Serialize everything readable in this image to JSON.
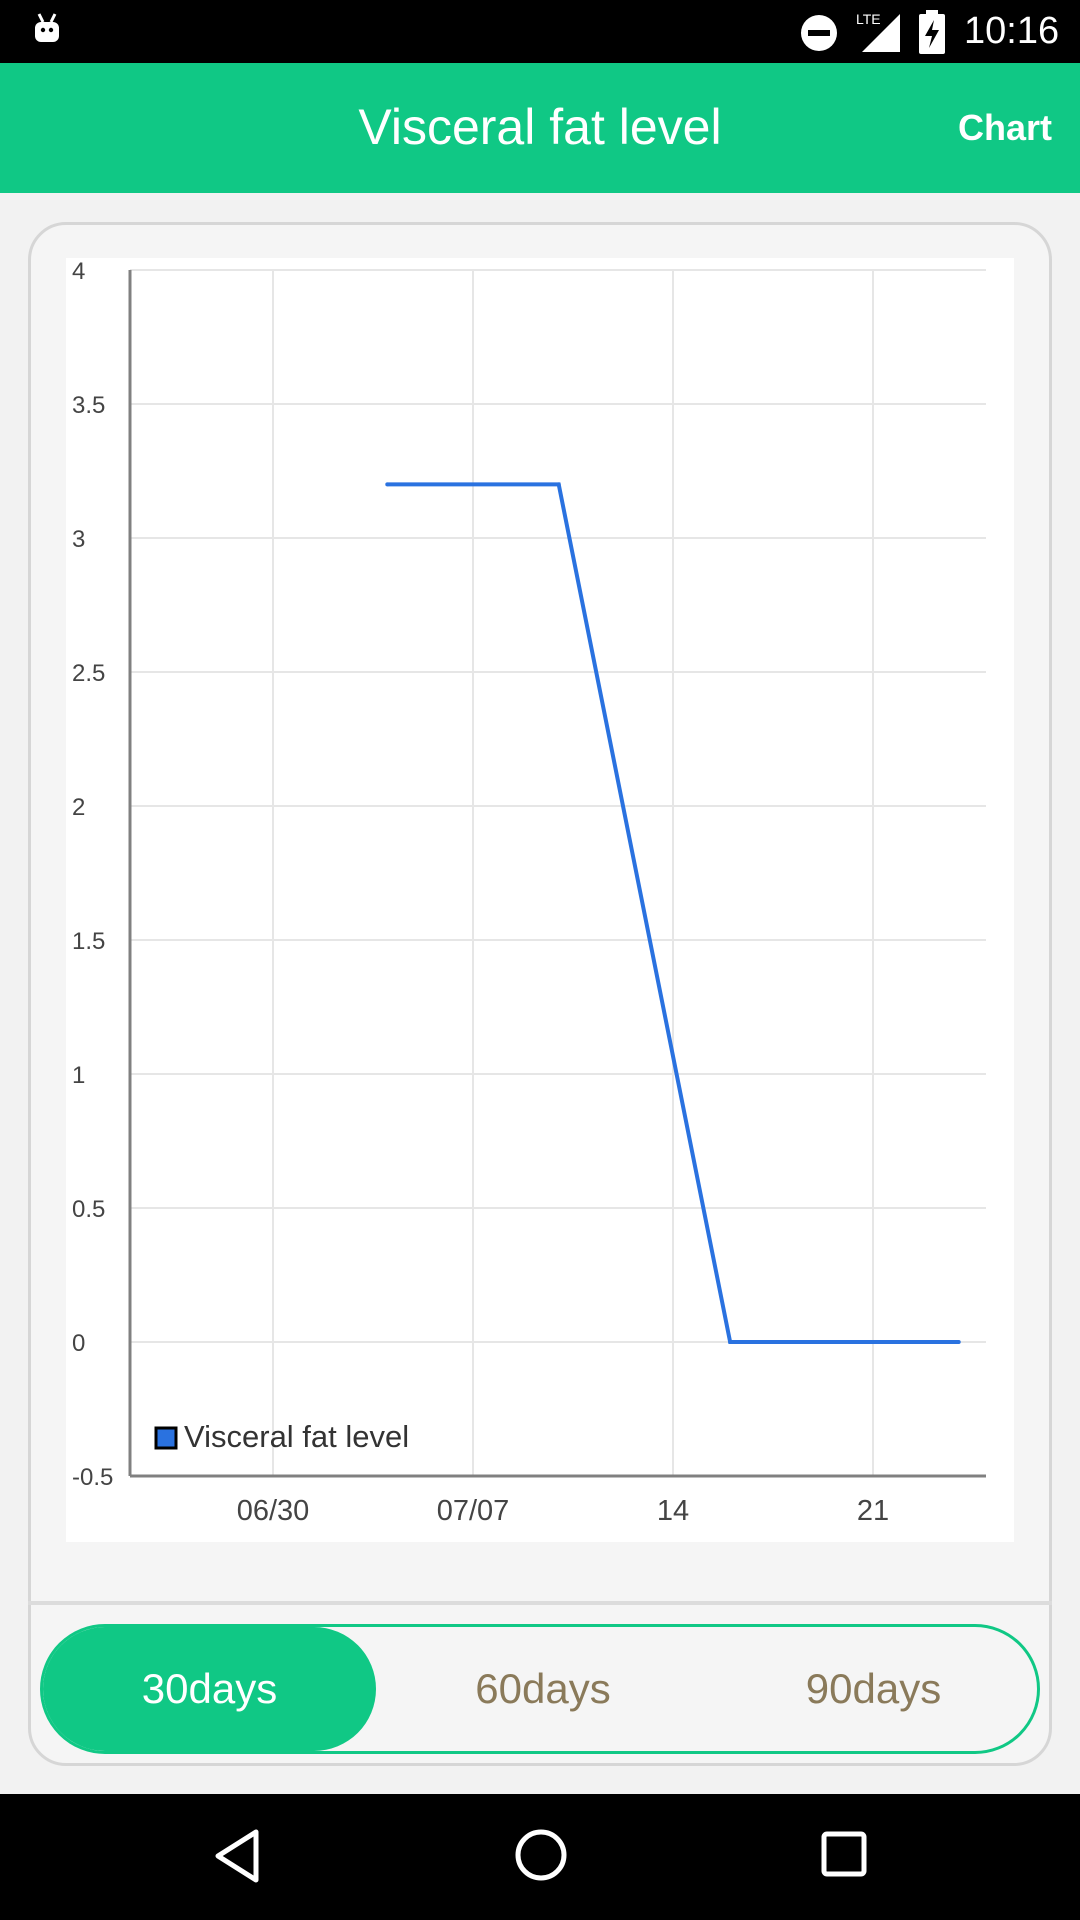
{
  "status_bar": {
    "time": "10:16",
    "network": "LTE"
  },
  "app_bar": {
    "title": "Visceral fat level",
    "action": "Chart"
  },
  "chart_data": {
    "type": "line",
    "x_ticks": [
      "06/30",
      "07/07",
      "14",
      "21"
    ],
    "y_ticks": [
      "4",
      "3.5",
      "3",
      "2.5",
      "2",
      "1.5",
      "1",
      "0.5",
      "0",
      "-0.5"
    ],
    "ylim": [
      -0.5,
      4
    ],
    "grid": true,
    "legend_position": "bottom-left",
    "series": [
      {
        "name": "Visceral fat level",
        "color": "#2a72e0",
        "points": [
          {
            "x": "07/04",
            "y": 3.2
          },
          {
            "x": "07/10",
            "y": 3.2
          },
          {
            "x": "07/16",
            "y": 0
          },
          {
            "x": "07/24",
            "y": 0
          }
        ]
      }
    ]
  },
  "range_selector": {
    "options": [
      "30days",
      "60days",
      "90days"
    ],
    "selected": "30days"
  },
  "colors": {
    "accent": "#10c885",
    "inactive_text": "#8a7a5a",
    "line": "#2a72e0"
  }
}
